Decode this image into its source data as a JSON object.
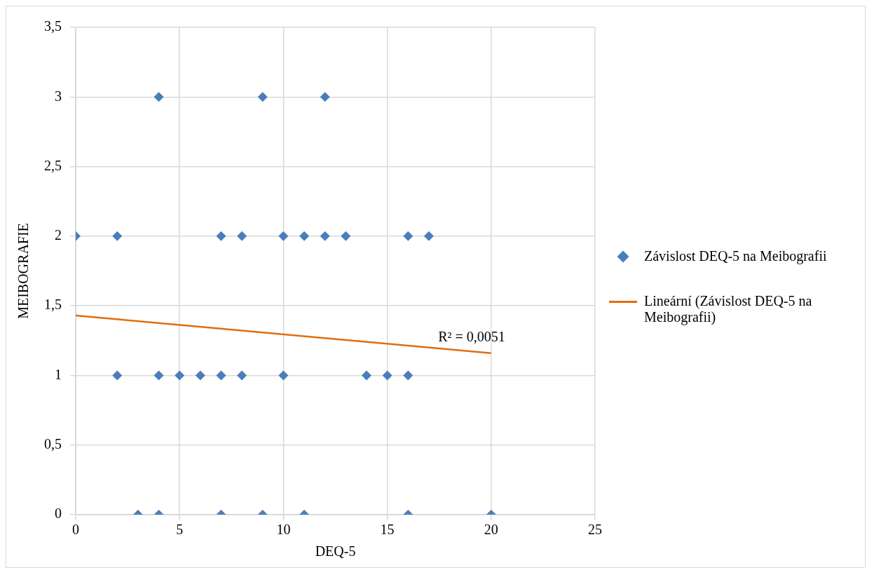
{
  "chart_data": {
    "type": "scatter",
    "xlabel": "DEQ-5",
    "ylabel": "MEIBOGRAFIE",
    "xlim": [
      0,
      25
    ],
    "xticks": [
      0,
      5,
      10,
      15,
      20,
      25
    ],
    "ylim": [
      0,
      3.5
    ],
    "yticks": [
      0,
      {
        "value": 0.5,
        "label": "0,5"
      },
      1,
      {
        "value": 1.5,
        "label": "1,5"
      },
      2,
      {
        "value": 2.5,
        "label": "2,5"
      },
      3,
      {
        "value": 3.5,
        "label": "3,5"
      }
    ],
    "grid": true,
    "legend": "right",
    "marker": "diamond",
    "series": [
      {
        "name": "Závislost DEQ-5 na Meibografii",
        "color": "#4a7ebb",
        "x": [
          4,
          9,
          12,
          0,
          2,
          7,
          8,
          10,
          11,
          12,
          13,
          16,
          17,
          2,
          4,
          5,
          6,
          7,
          8,
          10,
          14,
          15,
          16,
          3,
          4,
          7,
          9,
          11,
          16,
          20
        ],
        "values": [
          3,
          3,
          3,
          2,
          2,
          2,
          2,
          2,
          2,
          2,
          2,
          2,
          2,
          1,
          1,
          1,
          1,
          1,
          1,
          1,
          1,
          1,
          1,
          0,
          0,
          0,
          0,
          0,
          0,
          0
        ]
      },
      {
        "name": "Lineární (Závislost DEQ-5 na Meibografii)",
        "type": "line",
        "color": "#e46c0a",
        "marker": "none",
        "x": [
          0,
          20
        ],
        "values": [
          1.43,
          1.16
        ]
      }
    ],
    "annotations": [
      {
        "text": "R² = 0,0051",
        "x": 20,
        "y": 1.16
      }
    ]
  }
}
